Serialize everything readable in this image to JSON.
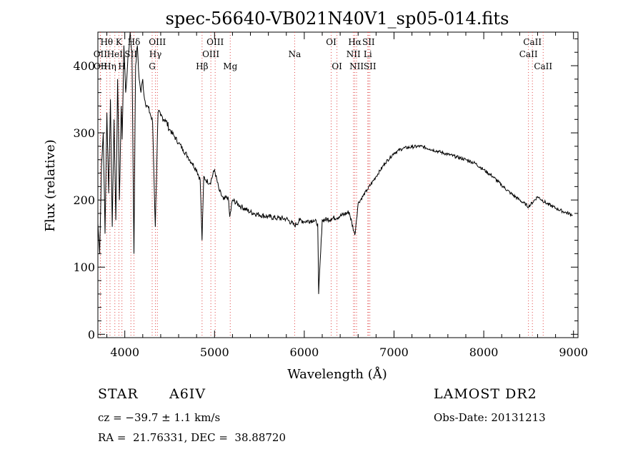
{
  "chart_data": {
    "type": "line",
    "title": "spec-56640-VB021N40V1_sp05-014.fits",
    "xlabel": "Wavelength (Å)",
    "ylabel": "Flux (relative)",
    "xlim": [
      3700,
      9050
    ],
    "ylim": [
      -5,
      450
    ],
    "x_ticks": [
      4000,
      5000,
      6000,
      7000,
      8000,
      9000
    ],
    "y_ticks": [
      0,
      100,
      200,
      300,
      400
    ],
    "grid": false,
    "legend": "none",
    "series": [
      {
        "x": [
          3700,
          3720,
          3740,
          3760,
          3780,
          3800,
          3820,
          3840,
          3860,
          3880,
          3900,
          3920,
          3940,
          3960,
          3970,
          3990,
          4010,
          4030,
          4060,
          4080,
          4102,
          4120,
          4140,
          4160,
          4180,
          4200,
          4220,
          4250,
          4280,
          4310,
          4340,
          4370,
          4400,
          4450,
          4500,
          4550,
          4600,
          4650,
          4700,
          4750,
          4800,
          4840,
          4861,
          4880,
          4900,
          4950,
          5000,
          5050,
          5100,
          5150,
          5170,
          5200,
          5300,
          5400,
          5500,
          5600,
          5700,
          5800,
          5893,
          5950,
          6000,
          6100,
          6150,
          6160,
          6200,
          6300,
          6400,
          6500,
          6563,
          6600,
          6700,
          6800,
          6900,
          7000,
          7100,
          7200,
          7300,
          7400,
          7500,
          7600,
          7700,
          7800,
          7900,
          8000,
          8100,
          8200,
          8300,
          8400,
          8500,
          8600,
          8700,
          8800,
          8900,
          8990
        ],
        "y": [
          165,
          120,
          250,
          300,
          150,
          330,
          210,
          350,
          160,
          320,
          170,
          380,
          200,
          340,
          290,
          430,
          360,
          400,
          450,
          420,
          120,
          400,
          430,
          380,
          360,
          380,
          350,
          340,
          330,
          315,
          160,
          330,
          325,
          320,
          305,
          295,
          285,
          275,
          265,
          255,
          245,
          230,
          140,
          235,
          230,
          225,
          245,
          215,
          200,
          205,
          175,
          200,
          190,
          182,
          178,
          175,
          173,
          172,
          162,
          170,
          168,
          170,
          165,
          60,
          170,
          172,
          176,
          182,
          148,
          195,
          215,
          235,
          255,
          270,
          277,
          279,
          280,
          276,
          272,
          268,
          264,
          260,
          255,
          245,
          235,
          222,
          210,
          200,
          190,
          205,
          195,
          188,
          182,
          178
        ]
      }
    ],
    "lines": [
      {
        "label": "OII",
        "x": 3727,
        "row": 2
      },
      {
        "label": "OII",
        "x": 3729,
        "row": 3
      },
      {
        "label": "Hθ",
        "x": 3798,
        "row": 1
      },
      {
        "label": "Hη",
        "x": 3835,
        "row": 3
      },
      {
        "label": "HeI",
        "x": 3889,
        "row": 2
      },
      {
        "label": "K",
        "x": 3934,
        "row": 1
      },
      {
        "label": "H",
        "x": 3968,
        "row": 3
      },
      {
        "label": "SII",
        "x": 4068,
        "row": 2
      },
      {
        "label": "Hδ",
        "x": 4102,
        "row": 1
      },
      {
        "label": "OIII",
        "x": 4363,
        "row": 1
      },
      {
        "label": "Hγ",
        "x": 4341,
        "row": 2
      },
      {
        "label": "G",
        "x": 4305,
        "row": 3
      },
      {
        "label": "Hβ",
        "x": 4861,
        "row": 3
      },
      {
        "label": "OIII",
        "x": 5007,
        "row": 1
      },
      {
        "label": "OIII",
        "x": 4959,
        "row": 2
      },
      {
        "label": "Mg",
        "x": 5175,
        "row": 3
      },
      {
        "label": "Na",
        "x": 5893,
        "row": 2
      },
      {
        "label": "OI",
        "x": 6300,
        "row": 1
      },
      {
        "label": "OI",
        "x": 6364,
        "row": 3
      },
      {
        "label": "Hα",
        "x": 6563,
        "row": 1
      },
      {
        "label": "NII",
        "x": 6548,
        "row": 2
      },
      {
        "label": "NII",
        "x": 6583,
        "row": 3
      },
      {
        "label": "SII",
        "x": 6716,
        "row": 1
      },
      {
        "label": "Li",
        "x": 6708,
        "row": 2
      },
      {
        "label": "SII",
        "x": 6731,
        "row": 3
      },
      {
        "label": "CaII",
        "x": 8542,
        "row": 1
      },
      {
        "label": "CaII",
        "x": 8498,
        "row": 2
      },
      {
        "label": "CaII",
        "x": 8662,
        "row": 3
      }
    ]
  },
  "info": {
    "object_type": "STAR",
    "subclass": "A6IV",
    "survey": "LAMOST DR2",
    "redshift": "cz = −39.7 ± 1.1 km/s",
    "obs_date": "Obs-Date: 20131213",
    "coords": "RA =  21.76331, DEC =  38.88720"
  }
}
